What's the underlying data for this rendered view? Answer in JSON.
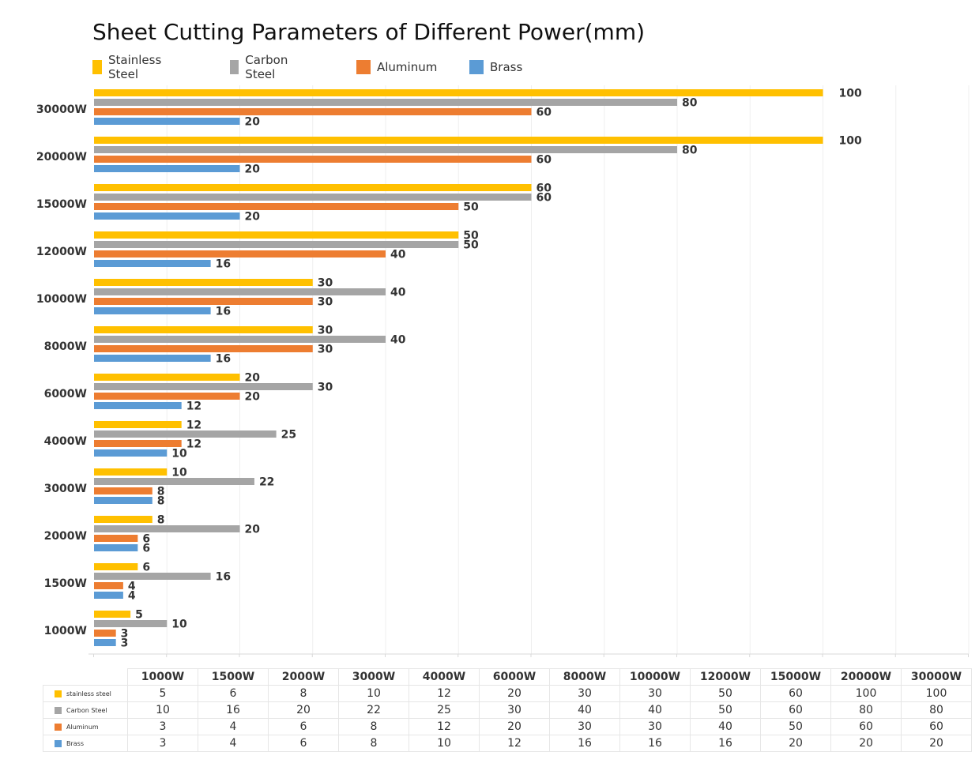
{
  "chart_data": {
    "type": "bar",
    "orientation": "horizontal",
    "title": "Sheet Cutting Parameters of Different Power(mm)",
    "categories": [
      "30000W",
      "20000W",
      "15000W",
      "12000W",
      "10000W",
      "8000W",
      "6000W",
      "4000W",
      "3000W",
      "2000W",
      "1500W",
      "1000W"
    ],
    "series": [
      {
        "name": "Stainless Steel",
        "color": "#FFC000",
        "values": [
          100,
          100,
          60,
          50,
          30,
          30,
          20,
          12,
          10,
          8,
          6,
          5
        ]
      },
      {
        "name": "Carbon Steel",
        "color": "#A5A5A5",
        "values": [
          80,
          80,
          60,
          50,
          40,
          40,
          30,
          25,
          22,
          20,
          16,
          10
        ]
      },
      {
        "name": "Aluminum",
        "color": "#ED7D31",
        "values": [
          60,
          60,
          50,
          40,
          30,
          30,
          20,
          12,
          8,
          6,
          4,
          3
        ]
      },
      {
        "name": "Brass",
        "color": "#5B9BD5",
        "values": [
          20,
          20,
          20,
          16,
          16,
          16,
          12,
          10,
          8,
          6,
          4,
          3
        ]
      }
    ],
    "xlim": [
      0,
      120
    ],
    "grid": true,
    "legend_position": "top-left",
    "table": {
      "columns": [
        "1000W",
        "1500W",
        "2000W",
        "3000W",
        "4000W",
        "6000W",
        "8000W",
        "10000W",
        "12000W",
        "15000W",
        "20000W",
        "30000W"
      ],
      "rows": [
        {
          "label": "stainless steel",
          "color": "#FFC000",
          "values": [
            5,
            6,
            8,
            10,
            12,
            20,
            30,
            30,
            50,
            60,
            100,
            100
          ]
        },
        {
          "label": "Carbon Steel",
          "color": "#A5A5A5",
          "values": [
            10,
            16,
            20,
            22,
            25,
            30,
            40,
            40,
            50,
            60,
            80,
            80
          ]
        },
        {
          "label": "Aluminum",
          "color": "#ED7D31",
          "values": [
            3,
            4,
            6,
            8,
            12,
            20,
            30,
            30,
            40,
            50,
            60,
            60
          ]
        },
        {
          "label": "Brass",
          "color": "#5B9BD5",
          "values": [
            3,
            4,
            6,
            8,
            10,
            12,
            16,
            16,
            16,
            20,
            20,
            20
          ]
        }
      ]
    }
  }
}
